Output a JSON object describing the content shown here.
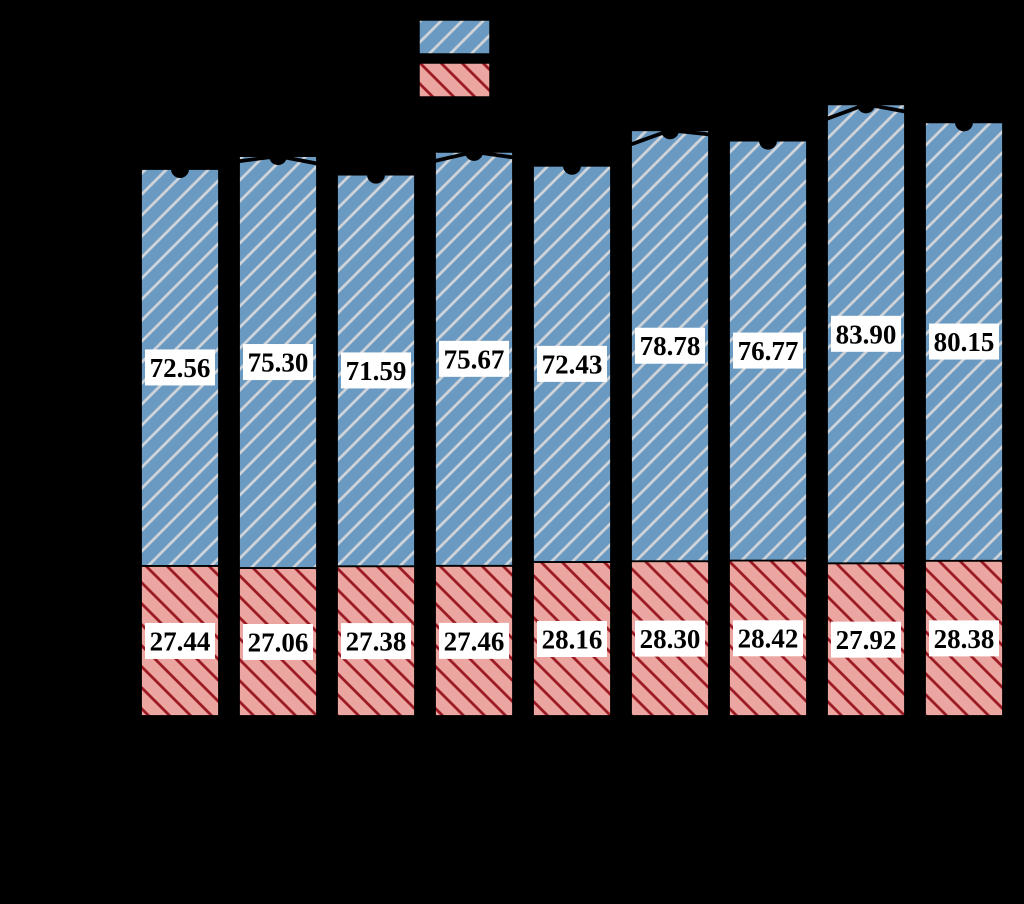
{
  "page": {
    "background_color": "#000000",
    "description": "Stacked bar chart with hatched fills, per-segment value labels, top legend swatches, and a black total line with round markers"
  },
  "chart_data": {
    "type": "bar",
    "stacked": true,
    "n_bars": 9,
    "series": [
      {
        "name": "bottom-red-hatched",
        "hatch": "\\",
        "fill": "#eca6a1",
        "hatch_color": "#9c1b24",
        "values": [
          27.44,
          27.06,
          27.38,
          27.46,
          28.16,
          28.3,
          28.42,
          27.92,
          28.38
        ],
        "labels": [
          "27.44",
          "27.06",
          "27.38",
          "27.46",
          "28.16",
          "28.30",
          "28.42",
          "27.92",
          "28.38"
        ]
      },
      {
        "name": "top-blue-hatched",
        "hatch": "/",
        "fill": "#6a9ac2",
        "hatch_color": "#cdd3d9",
        "values": [
          72.56,
          75.3,
          71.59,
          75.67,
          72.43,
          78.78,
          76.77,
          83.9,
          80.15
        ],
        "labels": [
          "72.56",
          "75.30",
          "71.59",
          "75.67",
          "72.43",
          "78.78",
          "76.77",
          "83.90",
          "80.15"
        ]
      }
    ],
    "line_overlay": {
      "type": "line",
      "color": "#000000",
      "marker": "circle",
      "totals": [
        100.0,
        102.36,
        98.97,
        103.13,
        100.59,
        107.08,
        105.19,
        111.82,
        108.53
      ]
    },
    "legend": {
      "position": "top-center",
      "entries": [
        {
          "swatch": "blue-hatched",
          "fill": "#6a9ac2",
          "hatch": "/",
          "hatch_color": "#cdd3d9",
          "label": ""
        },
        {
          "swatch": "red-hatched",
          "fill": "#eca6a1",
          "hatch": "\\",
          "hatch_color": "#9c1b24",
          "label": ""
        }
      ]
    },
    "label_box": {
      "background": "#ffffff",
      "text_color": "#000000"
    },
    "bar_edge_color": "#000000"
  }
}
